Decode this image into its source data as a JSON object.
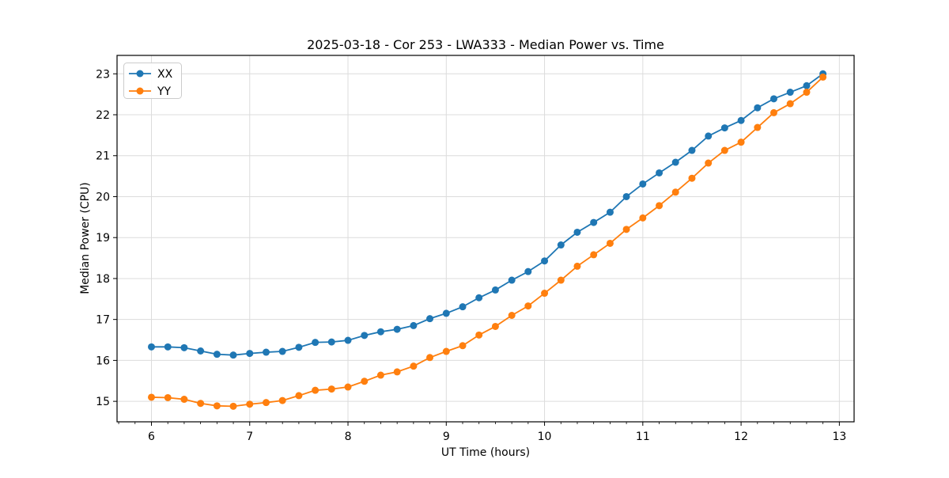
{
  "page": {
    "background": "#ffffff"
  },
  "chart_data": {
    "type": "line",
    "title": "2025-03-18 - Cor 253 - LWA333 - Median Power vs. Time",
    "xlabel": "UT Time (hours)",
    "ylabel": "Median Power (CPU)",
    "xlim": [
      5.65,
      13.15
    ],
    "ylim": [
      14.5,
      23.45
    ],
    "x_ticks": [
      6,
      7,
      8,
      9,
      10,
      11,
      12,
      13
    ],
    "y_ticks": [
      15,
      16,
      17,
      18,
      19,
      20,
      21,
      22,
      23
    ],
    "x_minor_divisions": 6,
    "grid": true,
    "grid_color": "#dcdcdc",
    "axis_color": "#000000",
    "legend_position": "upper-left",
    "x": [
      6.0,
      6.167,
      6.333,
      6.5,
      6.667,
      6.833,
      7.0,
      7.167,
      7.333,
      7.5,
      7.667,
      7.833,
      8.0,
      8.167,
      8.333,
      8.5,
      8.667,
      8.833,
      9.0,
      9.167,
      9.333,
      9.5,
      9.667,
      9.833,
      10.0,
      10.167,
      10.333,
      10.5,
      10.667,
      10.833,
      11.0,
      11.167,
      11.333,
      11.5,
      11.667,
      11.833,
      12.0,
      12.167,
      12.333,
      12.5,
      12.667,
      12.833
    ],
    "series": [
      {
        "name": "XX",
        "color": "#1f77b4",
        "values": [
          16.33,
          16.33,
          16.31,
          16.23,
          16.15,
          16.13,
          16.17,
          16.2,
          16.22,
          16.32,
          16.44,
          16.45,
          16.49,
          16.61,
          16.7,
          16.76,
          16.85,
          17.02,
          17.15,
          17.31,
          17.53,
          17.72,
          17.96,
          18.17,
          18.43,
          18.82,
          19.13,
          19.37,
          19.62,
          20.0,
          20.31,
          20.58,
          20.84,
          21.13,
          21.48,
          21.68,
          21.86,
          22.17,
          22.39,
          22.55,
          22.71,
          23.0
        ]
      },
      {
        "name": "YY",
        "color": "#ff7f0e",
        "values": [
          15.1,
          15.09,
          15.05,
          14.95,
          14.89,
          14.88,
          14.93,
          14.97,
          15.02,
          15.14,
          15.27,
          15.3,
          15.35,
          15.49,
          15.64,
          15.72,
          15.86,
          16.07,
          16.22,
          16.36,
          16.62,
          16.83,
          17.1,
          17.33,
          17.64,
          17.96,
          18.3,
          18.58,
          18.86,
          19.2,
          19.48,
          19.78,
          20.11,
          20.45,
          20.82,
          21.13,
          21.33,
          21.69,
          22.05,
          22.27,
          22.55,
          22.92
        ]
      }
    ]
  }
}
